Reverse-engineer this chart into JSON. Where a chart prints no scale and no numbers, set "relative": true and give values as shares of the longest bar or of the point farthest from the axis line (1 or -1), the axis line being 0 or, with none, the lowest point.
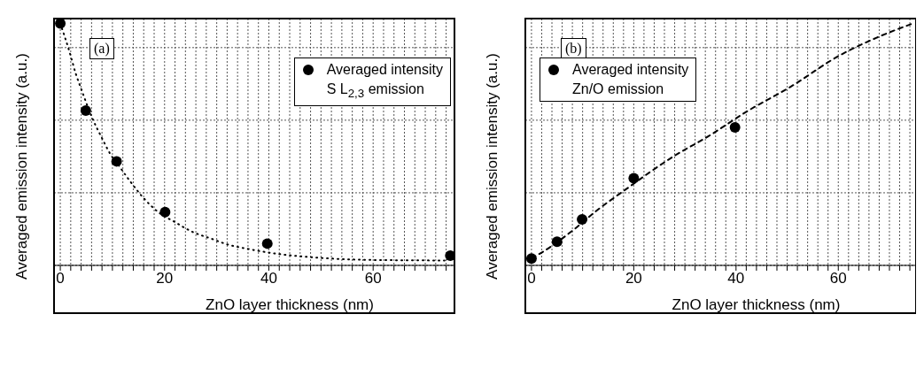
{
  "chart_data": [
    {
      "type": "scatter",
      "title": "(a)",
      "xlabel": "ZnO layer thickness (nm)",
      "ylabel": "Averaged emission intensity (a.u.)",
      "legend_title": "S L$_{2,3}$ emission",
      "relative": true,
      "xlim": [
        -1.2,
        75.6
      ],
      "xticks": [
        0,
        {
          "value": 2,
          "label": null
        },
        {
          "value": 4,
          "label": null
        },
        {
          "value": 6,
          "label": null
        },
        {
          "value": 8,
          "label": null
        },
        {
          "value": 10,
          "label": null
        },
        {
          "value": 12,
          "label": null
        },
        {
          "value": 14,
          "label": null
        },
        {
          "value": 16,
          "label": null
        },
        {
          "value": 18,
          "label": null
        },
        20,
        {
          "value": 22,
          "label": null
        },
        {
          "value": 24,
          "label": null
        },
        {
          "value": 26,
          "label": null
        },
        {
          "value": 28,
          "label": null
        },
        {
          "value": 30,
          "label": null
        },
        {
          "value": 32,
          "label": null
        },
        {
          "value": 34,
          "label": null
        },
        {
          "value": 36,
          "label": null
        },
        {
          "value": 38,
          "label": null
        },
        40,
        {
          "value": 42,
          "label": null
        },
        {
          "value": 44,
          "label": null
        },
        {
          "value": 46,
          "label": null
        },
        {
          "value": 48,
          "label": null
        },
        {
          "value": 50,
          "label": null
        },
        {
          "value": 52,
          "label": null
        },
        {
          "value": 54,
          "label": null
        },
        {
          "value": 56,
          "label": null
        },
        {
          "value": 58,
          "label": null
        },
        60,
        {
          "value": 62,
          "label": null
        },
        {
          "value": 64,
          "label": null
        },
        {
          "value": 66,
          "label": null
        },
        {
          "value": 68,
          "label": null
        },
        {
          "value": 70,
          "label": null
        },
        {
          "value": 72,
          "label": null
        },
        {
          "value": 74,
          "label": null
        }
      ],
      "grid": true,
      "legend": "top right",
      "series": [
        {
          "name": "Averaged intensity",
          "color": "#000000",
          "marker": "circle",
          "x": [
            0,
            4.9,
            10.8,
            20.1,
            39.7,
            74.8
          ],
          "values": [
            1,
            0.64,
            0.43,
            0.22,
            0.09,
            0.04
          ]
        },
        {
          "type": "line",
          "color": "#000000",
          "line_style": "dotted",
          "x": [
            0,
            1.8,
            3,
            4,
            6.1,
            7.9,
            9.6,
            11.3,
            13.3,
            15.9,
            18.8,
            21.9,
            25.2,
            29,
            32.3,
            36,
            41.2,
            46.9,
            54.1,
            61.4,
            68.1,
            73.7
          ],
          "values": [
            1,
            0.88,
            0.79,
            0.73,
            0.61,
            0.53,
            0.46,
            0.41,
            0.35,
            0.28,
            0.22,
            0.18,
            0.14,
            0.11,
            0.085,
            0.068,
            0.049,
            0.036,
            0.026,
            0.022,
            0.021,
            0.02
          ]
        }
      ]
    },
    {
      "type": "scatter",
      "title": "(b)",
      "xlabel": "ZnO layer thickness (nm)",
      "ylabel": "Averaged emission intensity (a.u.)",
      "legend_title": "Zn/O emission",
      "relative": true,
      "xlim": [
        -1.2,
        75.2
      ],
      "xticks": [
        0,
        {
          "value": 2,
          "label": null
        },
        {
          "value": 4,
          "label": null
        },
        {
          "value": 6,
          "label": null
        },
        {
          "value": 8,
          "label": null
        },
        {
          "value": 10,
          "label": null
        },
        {
          "value": 12,
          "label": null
        },
        {
          "value": 14,
          "label": null
        },
        {
          "value": 16,
          "label": null
        },
        {
          "value": 18,
          "label": null
        },
        20,
        {
          "value": 22,
          "label": null
        },
        {
          "value": 24,
          "label": null
        },
        {
          "value": 26,
          "label": null
        },
        {
          "value": 28,
          "label": null
        },
        {
          "value": 30,
          "label": null
        },
        {
          "value": 32,
          "label": null
        },
        {
          "value": 34,
          "label": null
        },
        {
          "value": 36,
          "label": null
        },
        {
          "value": 38,
          "label": null
        },
        40,
        {
          "value": 42,
          "label": null
        },
        {
          "value": 44,
          "label": null
        },
        {
          "value": 46,
          "label": null
        },
        {
          "value": 48,
          "label": null
        },
        {
          "value": 50,
          "label": null
        },
        {
          "value": 52,
          "label": null
        },
        {
          "value": 54,
          "label": null
        },
        {
          "value": 56,
          "label": null
        },
        {
          "value": 58,
          "label": null
        },
        60,
        {
          "value": 62,
          "label": null
        },
        {
          "value": 64,
          "label": null
        },
        {
          "value": 66,
          "label": null
        },
        {
          "value": 68,
          "label": null
        },
        {
          "value": 70,
          "label": null
        },
        {
          "value": 72,
          "label": null
        },
        {
          "value": 74,
          "label": null
        }
      ],
      "grid": true,
      "legend": "top left",
      "series": [
        {
          "name": "Averaged intensity",
          "color": "#000000",
          "marker": "circle",
          "x": [
            0,
            5,
            9.9,
            20,
            39.8
          ],
          "values": [
            0.028,
            0.098,
            0.19,
            0.36,
            0.57
          ]
        },
        {
          "type": "line",
          "color": "#000000",
          "line_style": "dashed",
          "x": [
            0,
            1.9,
            8.1,
            12.6,
            18.3,
            27.9,
            34.7,
            41.8,
            50.8,
            60.2,
            67.5,
            74.6
          ],
          "values": [
            0.03,
            0.052,
            0.145,
            0.224,
            0.312,
            0.452,
            0.535,
            0.632,
            0.74,
            0.867,
            0.941,
            1
          ]
        }
      ]
    }
  ]
}
